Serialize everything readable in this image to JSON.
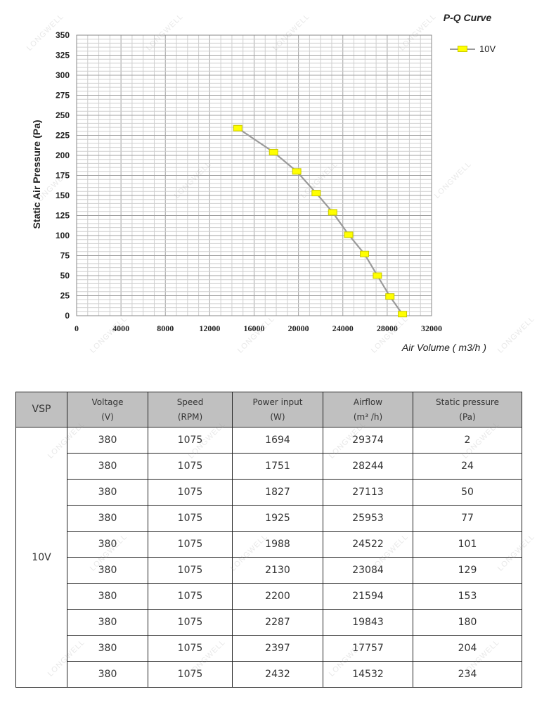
{
  "chart_data": {
    "type": "line",
    "title": "P-Q Curve",
    "xlabel": "Air Volume ( m3/h )",
    "ylabel": "Static Air Pressure  (Pa)",
    "xlim": [
      0,
      32000
    ],
    "ylim": [
      0,
      350
    ],
    "x_ticks": [
      0,
      4000,
      8000,
      12000,
      16000,
      20000,
      24000,
      28000,
      32000
    ],
    "y_ticks": [
      0,
      25,
      50,
      75,
      100,
      125,
      150,
      175,
      200,
      225,
      250,
      275,
      300,
      325,
      350
    ],
    "grid": true,
    "legend": "top-right",
    "series": [
      {
        "name": "10V",
        "color": "#9a9a9a",
        "marker_color": "#ffff00",
        "x": [
          14532,
          17757,
          19843,
          21594,
          23084,
          24522,
          25953,
          27113,
          28244,
          29374
        ],
        "y": [
          234,
          204,
          180,
          153,
          129,
          101,
          77,
          50,
          24,
          2
        ]
      }
    ]
  },
  "watermark": "LONGWELL",
  "table": {
    "vsp_header": "VSP",
    "columns": [
      {
        "name": "Voltage",
        "unit": "(V)"
      },
      {
        "name": "Speed",
        "unit": "(RPM)"
      },
      {
        "name": "Power input",
        "unit": "(W)"
      },
      {
        "name": "Airflow",
        "unit": "(m³ /h)"
      },
      {
        "name": "Static pressure",
        "unit": "(Pa)"
      }
    ],
    "vsp_value": "10V",
    "rows": [
      [
        "380",
        "1075",
        "1694",
        "29374",
        "2"
      ],
      [
        "380",
        "1075",
        "1751",
        "28244",
        "24"
      ],
      [
        "380",
        "1075",
        "1827",
        "27113",
        "50"
      ],
      [
        "380",
        "1075",
        "1925",
        "25953",
        "77"
      ],
      [
        "380",
        "1075",
        "1988",
        "24522",
        "101"
      ],
      [
        "380",
        "1075",
        "2130",
        "23084",
        "129"
      ],
      [
        "380",
        "1075",
        "2200",
        "21594",
        "153"
      ],
      [
        "380",
        "1075",
        "2287",
        "19843",
        "180"
      ],
      [
        "380",
        "1075",
        "2397",
        "17757",
        "204"
      ],
      [
        "380",
        "1075",
        "2432",
        "14532",
        "234"
      ]
    ]
  }
}
